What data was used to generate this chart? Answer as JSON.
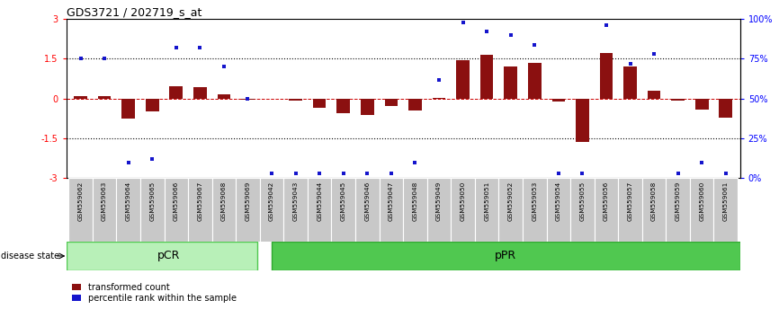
{
  "title": "GDS3721 / 202719_s_at",
  "samples": [
    "GSM559062",
    "GSM559063",
    "GSM559064",
    "GSM559065",
    "GSM559066",
    "GSM559067",
    "GSM559068",
    "GSM559069",
    "GSM559042",
    "GSM559043",
    "GSM559044",
    "GSM559045",
    "GSM559046",
    "GSM559047",
    "GSM559048",
    "GSM559049",
    "GSM559050",
    "GSM559051",
    "GSM559052",
    "GSM559053",
    "GSM559054",
    "GSM559055",
    "GSM559056",
    "GSM559057",
    "GSM559058",
    "GSM559059",
    "GSM559060",
    "GSM559061"
  ],
  "transformed_count": [
    0.1,
    0.1,
    -0.75,
    -0.5,
    0.45,
    0.42,
    0.15,
    -0.05,
    -0.02,
    -0.08,
    -0.35,
    -0.55,
    -0.62,
    -0.28,
    -0.45,
    0.02,
    1.45,
    1.65,
    1.2,
    1.35,
    -0.12,
    -1.62,
    1.72,
    1.2,
    0.28,
    -0.08,
    -0.42,
    -0.72
  ],
  "percentile_rank": [
    75,
    75,
    10,
    12,
    82,
    82,
    70,
    50,
    3,
    3,
    3,
    3,
    3,
    3,
    10,
    62,
    98,
    92,
    90,
    84,
    3,
    3,
    96,
    72,
    78,
    3,
    10,
    3
  ],
  "pCR_count": 8,
  "bar_color": "#8B1010",
  "dot_color": "#1515CC",
  "ylim": [
    -3,
    3
  ],
  "right_ylim": [
    0,
    100
  ],
  "pcr_color": "#b8f0b8",
  "ppr_color": "#50c850"
}
